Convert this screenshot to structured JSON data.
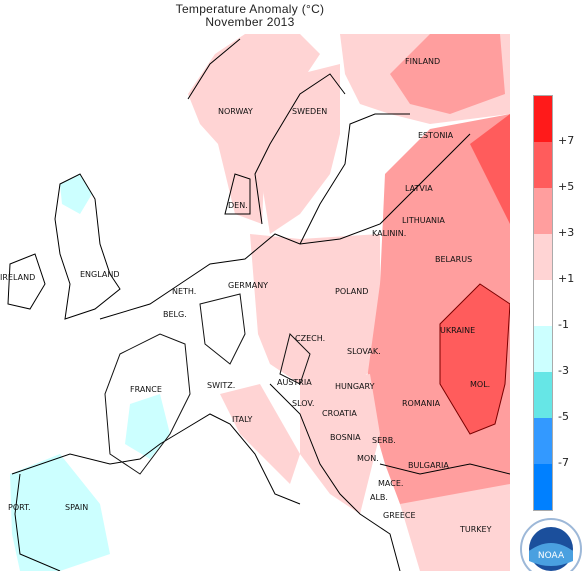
{
  "title": "Temperature Anomaly (°C)",
  "subtitle": "November 2013",
  "legend": {
    "colors": [
      "#ff1a1a",
      "#ff5c5c",
      "#ff9e9e",
      "#ffd4d4",
      "#ffffff",
      "#ccffff",
      "#66e6e6",
      "#3399ff",
      "#0080ff"
    ],
    "ticks": [
      "+7",
      "+5",
      "+3",
      "+1",
      "-1",
      "-3",
      "-5",
      "-7"
    ]
  },
  "countries": [
    "FINLAND",
    "NORWAY",
    "SWEDEN",
    "ESTONIA",
    "LATVIA",
    "DEN.",
    "LITHUANIA",
    "KALININ.",
    "BELARUS",
    "IRELAND",
    "ENGLAND",
    "POLAND",
    "NETH.",
    "GERMANY",
    "BELG.",
    "UKRAINE",
    "CZECH.",
    "SLOVAK.",
    "FRANCE",
    "SWITZ.",
    "AUSTRIA",
    "HUNGARY",
    "MOL.",
    "SLOV.",
    "CROATIA",
    "ROMANIA",
    "ITALY",
    "BOSNIA",
    "SERB.",
    "MON.",
    "BULGARIA",
    "MACE.",
    "ALB.",
    "PORT.",
    "SPAIN",
    "GREECE",
    "TURKEY"
  ],
  "logo": "NOAA"
}
